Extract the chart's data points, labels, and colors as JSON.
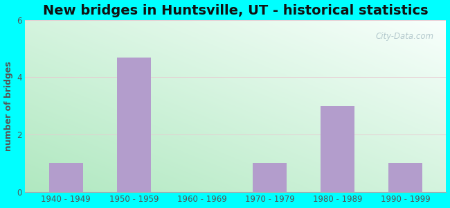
{
  "title": "New bridges in Huntsville, UT - historical statistics",
  "categories": [
    "1940 - 1949",
    "1950 - 1959",
    "1960 - 1969",
    "1970 - 1979",
    "1980 - 1989",
    "1990 - 1999"
  ],
  "values": [
    1,
    4.7,
    0,
    1,
    3,
    1
  ],
  "bar_color": "#b39dcc",
  "bar_edgecolor": "#b39dcc",
  "ylabel": "number of bridges",
  "ylim": [
    0,
    6
  ],
  "yticks": [
    0,
    2,
    4,
    6
  ],
  "outer_bg": "#00ffff",
  "plot_bg_topleft": "#c8f0d8",
  "plot_bg_topright": "#f5fcff",
  "plot_bg_bottomleft": "#b0e8c8",
  "plot_bg_bottomright": "#e8f8f0",
  "title_color": "#111111",
  "axis_label_color": "#555555",
  "tick_label_color": "#555555",
  "watermark": "City-Data.com",
  "title_fontsize": 14,
  "ylabel_fontsize": 9,
  "tick_fontsize": 8.5,
  "bar_width": 0.5,
  "grid_color": "#dddddd"
}
